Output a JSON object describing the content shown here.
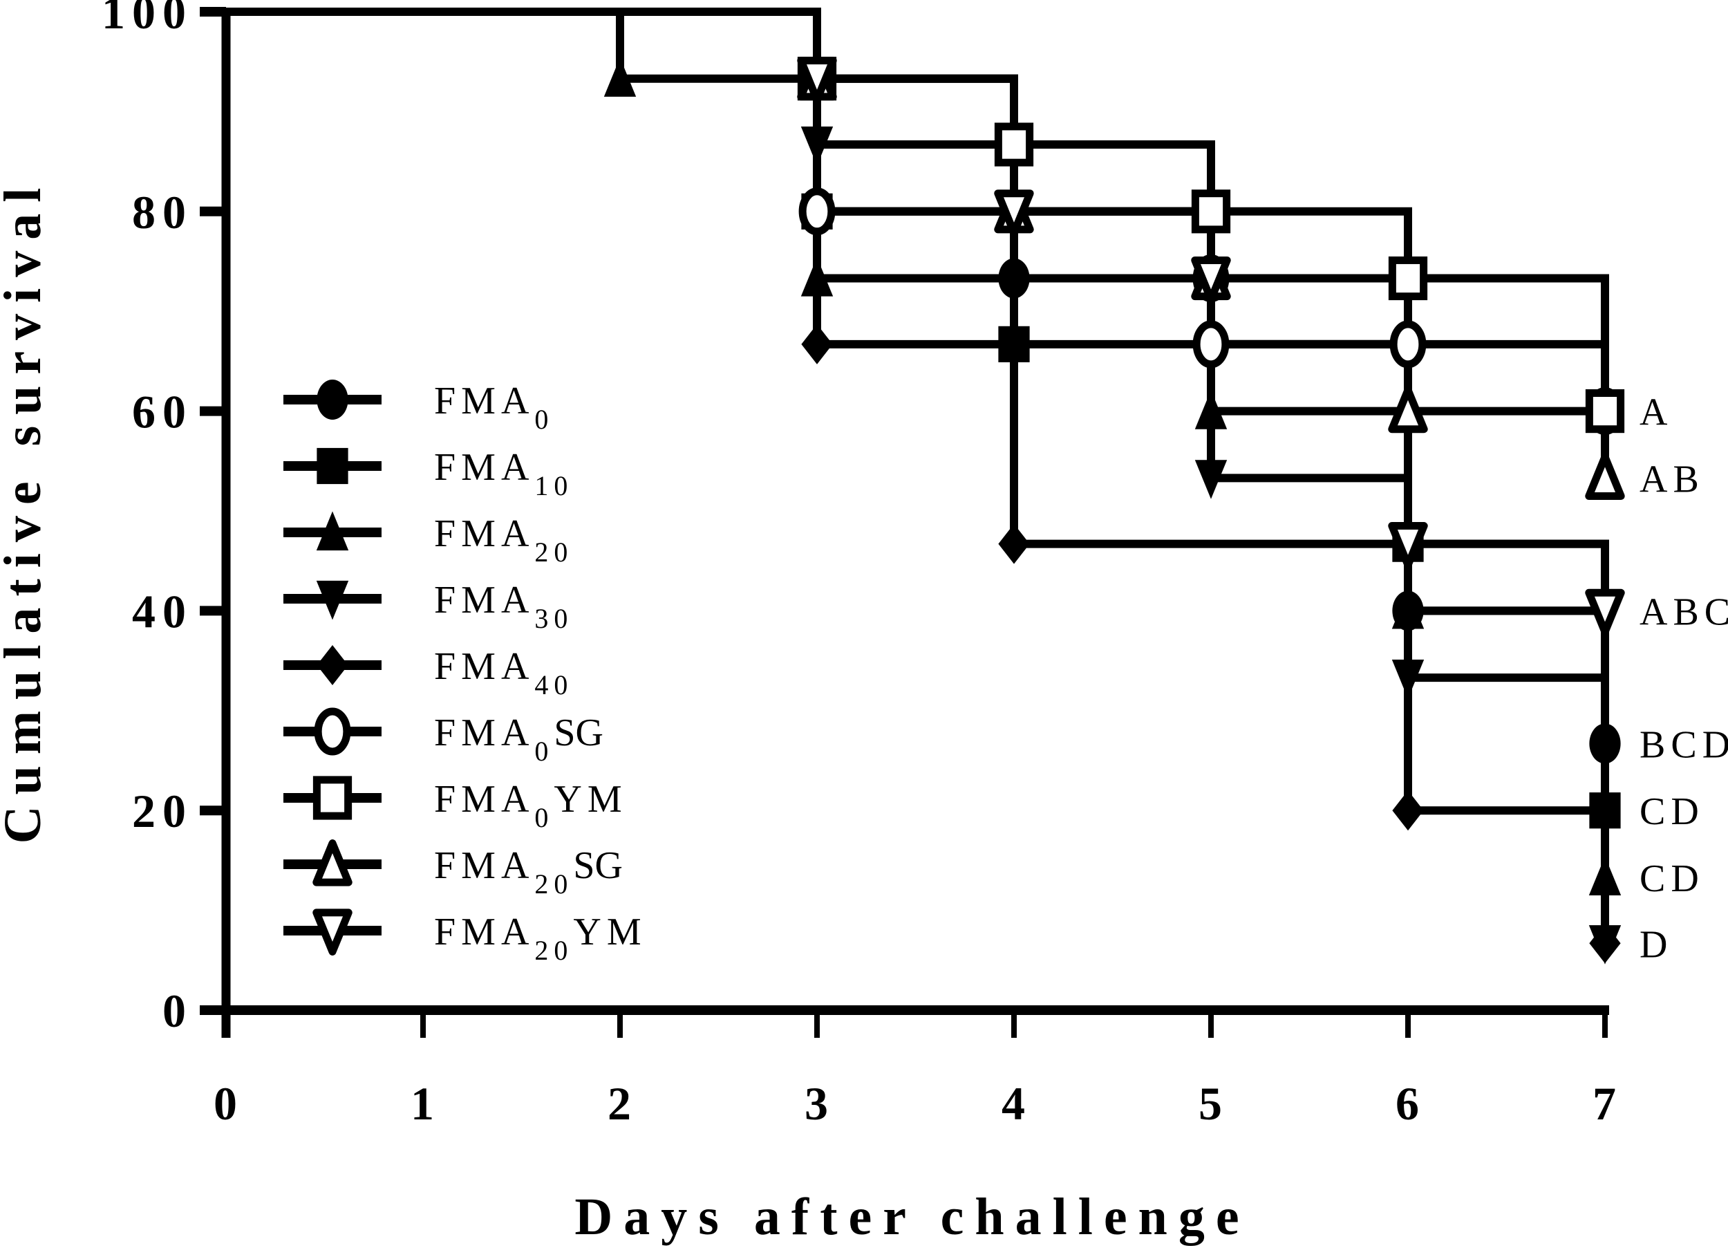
{
  "chart_data": {
    "type": "line",
    "subtype": "kaplan-meier-step",
    "title": "",
    "xlabel": "Days after challenge",
    "ylabel": "Cumulative survival",
    "xlim": [
      0,
      7
    ],
    "ylim": [
      0,
      100
    ],
    "x_ticks": [
      0,
      1,
      2,
      3,
      4,
      5,
      6,
      7
    ],
    "y_ticks": [
      0,
      20,
      40,
      60,
      80,
      100
    ],
    "grid": false,
    "legend_position": "inside-left",
    "series": [
      {
        "name": "FMA0",
        "label_main": "FMA",
        "label_sub": "0",
        "label_suffix": "",
        "marker": "circle",
        "filled": true,
        "points": [
          [
            0,
            100
          ],
          [
            3,
            80
          ],
          [
            4,
            73.3
          ],
          [
            5,
            66.7
          ],
          [
            6,
            40
          ],
          [
            7,
            26.7
          ]
        ],
        "significance": "BCD"
      },
      {
        "name": "FMA10",
        "label_main": "FMA",
        "label_sub": "10",
        "label_suffix": "",
        "marker": "square",
        "filled": true,
        "points": [
          [
            0,
            100
          ],
          [
            3,
            80
          ],
          [
            4,
            66.7
          ],
          [
            6,
            46.7
          ],
          [
            7,
            20
          ]
        ],
        "significance": "CD"
      },
      {
        "name": "FMA20",
        "label_main": "FMA",
        "label_sub": "20",
        "label_suffix": "",
        "marker": "triangle-up",
        "filled": true,
        "points": [
          [
            0,
            100
          ],
          [
            2,
            93.3
          ],
          [
            3,
            73.3
          ],
          [
            5,
            60
          ],
          [
            6,
            40
          ],
          [
            7,
            13.3
          ]
        ],
        "significance": "CD"
      },
      {
        "name": "FMA30",
        "label_main": "FMA",
        "label_sub": "30",
        "label_suffix": "",
        "marker": "triangle-down",
        "filled": true,
        "points": [
          [
            0,
            100
          ],
          [
            3,
            86.7
          ],
          [
            4,
            80
          ],
          [
            5,
            73.3
          ],
          [
            5,
            53.3
          ],
          [
            6,
            33.3
          ],
          [
            7,
            6.7
          ]
        ],
        "significance": "D"
      },
      {
        "name": "FMA40",
        "label_main": "FMA",
        "label_sub": "40",
        "label_suffix": "",
        "marker": "diamond",
        "filled": true,
        "points": [
          [
            0,
            100
          ],
          [
            3,
            66.7
          ],
          [
            4,
            46.7
          ],
          [
            6,
            20
          ],
          [
            7,
            6.7
          ]
        ],
        "significance": "D"
      },
      {
        "name": "FMA0SG",
        "label_main": "FMA",
        "label_sub": "0",
        "label_suffix": "SG",
        "marker": "circle",
        "filled": false,
        "points": [
          [
            0,
            100
          ],
          [
            3,
            80
          ],
          [
            5,
            73.3
          ],
          [
            5,
            66.7
          ],
          [
            6,
            66.7
          ],
          [
            7,
            60
          ]
        ],
        "significance": "A"
      },
      {
        "name": "FMA0YM",
        "label_main": "FMA",
        "label_sub": "0",
        "label_suffix": "YM",
        "marker": "square",
        "filled": false,
        "points": [
          [
            0,
            100
          ],
          [
            3,
            93.3
          ],
          [
            4,
            86.7
          ],
          [
            5,
            80
          ],
          [
            6,
            73.3
          ],
          [
            7,
            60
          ]
        ],
        "significance": "A"
      },
      {
        "name": "FMA20SG",
        "label_main": "FMA",
        "label_sub": "20",
        "label_suffix": "SG",
        "marker": "triangle-up",
        "filled": false,
        "points": [
          [
            0,
            100
          ],
          [
            3,
            93.3
          ],
          [
            4,
            80
          ],
          [
            5,
            73.3
          ],
          [
            6,
            60
          ],
          [
            7,
            53.3
          ]
        ],
        "significance": "AB"
      },
      {
        "name": "FMA20YM",
        "label_main": "FMA",
        "label_sub": "20",
        "label_suffix": "YM",
        "marker": "triangle-down",
        "filled": false,
        "points": [
          [
            0,
            100
          ],
          [
            3,
            93.3
          ],
          [
            4,
            80
          ],
          [
            5,
            73.3
          ],
          [
            6,
            46.7
          ],
          [
            7,
            40
          ]
        ],
        "significance": "ABC"
      }
    ],
    "annotations": [
      {
        "text": "A",
        "x": 7,
        "y": 60
      },
      {
        "text": "AB",
        "x": 7,
        "y": 53.3
      },
      {
        "text": "ABC",
        "x": 7,
        "y": 40
      },
      {
        "text": "BCD",
        "x": 7,
        "y": 26.7
      },
      {
        "text": "CD",
        "x": 7,
        "y": 20
      },
      {
        "text": "CD",
        "x": 7,
        "y": 13.3
      },
      {
        "text": "D",
        "x": 7,
        "y": 6.7
      }
    ]
  },
  "labels": {
    "xlabel": "Days after challenge",
    "ylabel": "Cumulative survival"
  },
  "style": {
    "line_color": "#000000",
    "background": "#ffffff"
  }
}
